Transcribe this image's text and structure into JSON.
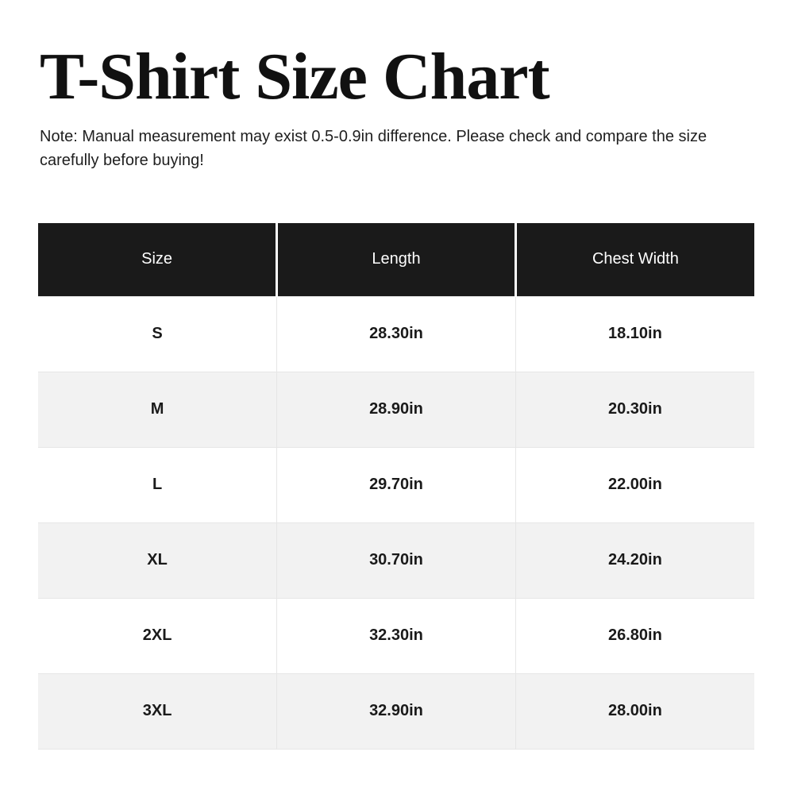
{
  "page": {
    "title": "T-Shirt Size Chart",
    "note": "Note: Manual measurement may exist 0.5-0.9in difference. Please check and compare the size carefully before buying!"
  },
  "table": {
    "headers": {
      "size": "Size",
      "length": "Length",
      "chest_width": "Chest Width"
    },
    "rows": [
      {
        "size": "S",
        "length": "28.30in",
        "chest_width": "18.10in"
      },
      {
        "size": "M",
        "length": "28.90in",
        "chest_width": "20.30in"
      },
      {
        "size": "L",
        "length": "29.70in",
        "chest_width": "22.00in"
      },
      {
        "size": "XL",
        "length": "30.70in",
        "chest_width": "24.20in"
      },
      {
        "size": "2XL",
        "length": "32.30in",
        "chest_width": "26.80in"
      },
      {
        "size": "3XL",
        "length": "32.90in",
        "chest_width": "28.00in"
      }
    ]
  },
  "colors": {
    "header_background": "#1a1a1a",
    "header_text": "#ffffff",
    "body_text": "#1a1a1a",
    "row_alternate_background": "#f2f2f2",
    "divider": "#e6e6e6",
    "page_background": "#ffffff"
  }
}
